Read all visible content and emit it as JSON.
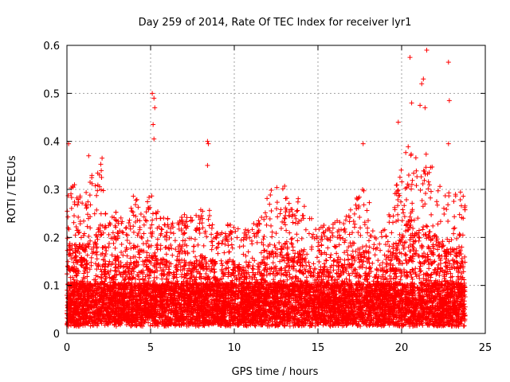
{
  "chart_data": {
    "type": "scatter",
    "title": "Day 259 of 2014, Rate Of TEC Index for receiver lyr1",
    "xlabel": "GPS time / hours",
    "ylabel": "ROTI / TECUs",
    "xlim": [
      0,
      25
    ],
    "ylim": [
      0,
      0.6
    ],
    "xticks": [
      0,
      5,
      10,
      15,
      20,
      25
    ],
    "xtick_labels": [
      "0",
      "5",
      "10",
      "15",
      "20",
      "25"
    ],
    "yticks": [
      0,
      0.1,
      0.2,
      0.3,
      0.4,
      0.5,
      0.6
    ],
    "ytick_labels": [
      "0",
      "0.1",
      "0.2",
      "0.3",
      "0.4",
      "0.5",
      "0.6"
    ],
    "grid": true,
    "marker": "+",
    "marker_color": "#ff0000",
    "series": [
      {
        "name": "ROTI",
        "x_range": [
          0,
          23.8
        ],
        "upper_envelope_x": [
          0,
          0.5,
          1,
          1.5,
          2,
          2.5,
          3,
          3.5,
          4,
          4.5,
          5,
          5.5,
          6,
          6.5,
          7,
          7.5,
          8,
          8.5,
          9,
          9.5,
          10,
          10.5,
          11,
          11.5,
          12,
          12.5,
          13,
          13.5,
          14,
          14.5,
          15,
          15.5,
          16,
          16.5,
          17,
          17.5,
          18,
          18.5,
          19,
          19.5,
          20,
          20.5,
          21,
          21.5,
          22,
          22.5,
          23,
          23.5,
          23.8
        ],
        "upper_envelope_y": [
          0.32,
          0.31,
          0.3,
          0.33,
          0.36,
          0.24,
          0.26,
          0.22,
          0.3,
          0.28,
          0.3,
          0.25,
          0.24,
          0.23,
          0.25,
          0.24,
          0.26,
          0.26,
          0.22,
          0.24,
          0.23,
          0.22,
          0.23,
          0.24,
          0.3,
          0.33,
          0.31,
          0.26,
          0.3,
          0.25,
          0.22,
          0.23,
          0.25,
          0.24,
          0.26,
          0.3,
          0.3,
          0.2,
          0.22,
          0.28,
          0.36,
          0.4,
          0.36,
          0.38,
          0.34,
          0.3,
          0.29,
          0.3,
          0.29
        ],
        "outliers": [
          {
            "x": 0.1,
            "y": 0.395
          },
          {
            "x": 1.3,
            "y": 0.37
          },
          {
            "x": 2.1,
            "y": 0.365
          },
          {
            "x": 5.1,
            "y": 0.5
          },
          {
            "x": 5.2,
            "y": 0.49
          },
          {
            "x": 5.25,
            "y": 0.47
          },
          {
            "x": 5.15,
            "y": 0.435
          },
          {
            "x": 5.2,
            "y": 0.405
          },
          {
            "x": 8.4,
            "y": 0.4
          },
          {
            "x": 8.45,
            "y": 0.395
          },
          {
            "x": 8.4,
            "y": 0.35
          },
          {
            "x": 17.7,
            "y": 0.395
          },
          {
            "x": 19.8,
            "y": 0.44
          },
          {
            "x": 20.5,
            "y": 0.575
          },
          {
            "x": 21.3,
            "y": 0.53
          },
          {
            "x": 21.2,
            "y": 0.52
          },
          {
            "x": 21.5,
            "y": 0.59
          },
          {
            "x": 20.6,
            "y": 0.48
          },
          {
            "x": 21.1,
            "y": 0.475
          },
          {
            "x": 21.4,
            "y": 0.47
          },
          {
            "x": 22.8,
            "y": 0.565
          },
          {
            "x": 22.85,
            "y": 0.485
          },
          {
            "x": 22.8,
            "y": 0.395
          }
        ]
      }
    ]
  }
}
